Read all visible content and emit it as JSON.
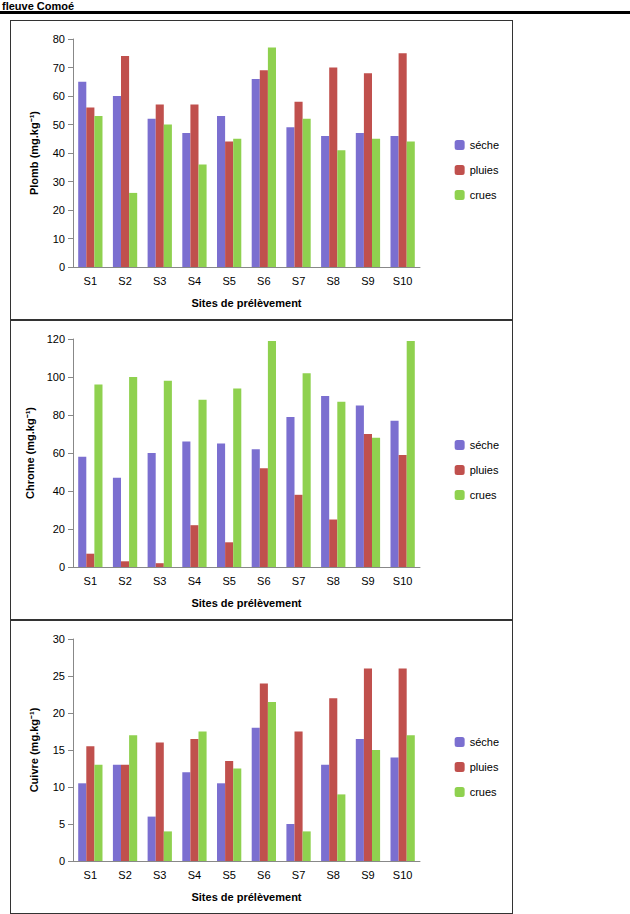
{
  "header": "fleuve Comoé",
  "chart_data": [
    {
      "type": "bar",
      "ylabel": "Plomb (mg.kg⁻¹)",
      "xlabel": "Sites de prélèvement",
      "categories": [
        "S1",
        "S2",
        "S3",
        "S4",
        "S5",
        "S6",
        "S7",
        "S8",
        "S9",
        "S10"
      ],
      "series": [
        {
          "name": "séche",
          "color": "#7b6fd0",
          "values": [
            65,
            60,
            52,
            47,
            53,
            66,
            49,
            46,
            47,
            46
          ]
        },
        {
          "name": "pluies",
          "color": "#c0504d",
          "values": [
            56,
            74,
            57,
            57,
            44,
            69,
            58,
            70,
            68,
            75
          ]
        },
        {
          "name": "crues",
          "color": "#8fd14f",
          "values": [
            53,
            26,
            50,
            36,
            45,
            77,
            52,
            41,
            45,
            44
          ]
        }
      ],
      "ylim": [
        0,
        80
      ],
      "yticks": [
        0,
        10,
        20,
        30,
        40,
        50,
        60,
        70,
        80
      ],
      "grid": false,
      "legend": "right"
    },
    {
      "type": "bar",
      "ylabel": "Chrome (mg.kg⁻¹)",
      "xlabel": "Sites de prélèvement",
      "categories": [
        "S1",
        "S2",
        "S3",
        "S4",
        "S5",
        "S6",
        "S7",
        "S8",
        "S9",
        "S10"
      ],
      "series": [
        {
          "name": "séche",
          "color": "#7b6fd0",
          "values": [
            58,
            47,
            60,
            66,
            65,
            62,
            79,
            90,
            85,
            77
          ]
        },
        {
          "name": "pluies",
          "color": "#c0504d",
          "values": [
            7,
            3,
            2,
            22,
            13,
            52,
            38,
            25,
            70,
            59
          ]
        },
        {
          "name": "crues",
          "color": "#8fd14f",
          "values": [
            96,
            100,
            98,
            88,
            94,
            119,
            102,
            87,
            68,
            119
          ]
        }
      ],
      "ylim": [
        0,
        120
      ],
      "yticks": [
        0,
        20,
        40,
        60,
        80,
        100,
        120
      ],
      "grid": false,
      "legend": "right"
    },
    {
      "type": "bar",
      "ylabel": "Cuivre (mg.kg⁻¹)",
      "xlabel": "Sites de prélèvement",
      "categories": [
        "S1",
        "S2",
        "S3",
        "S4",
        "S5",
        "S6",
        "S7",
        "S8",
        "S9",
        "S10"
      ],
      "series": [
        {
          "name": "séche",
          "color": "#7b6fd0",
          "values": [
            10.5,
            13,
            6,
            12,
            10.5,
            18,
            5,
            13,
            16.5,
            14
          ]
        },
        {
          "name": "pluies",
          "color": "#c0504d",
          "values": [
            15.5,
            13,
            16,
            16.5,
            13.5,
            24,
            17.5,
            22,
            26,
            26
          ]
        },
        {
          "name": "crues",
          "color": "#8fd14f",
          "values": [
            13,
            17,
            4,
            17.5,
            12.5,
            21.5,
            4,
            9,
            15,
            17
          ]
        }
      ],
      "ylim": [
        0,
        30
      ],
      "yticks": [
        0,
        5,
        10,
        15,
        20,
        25,
        30
      ],
      "grid": false,
      "legend": "right"
    }
  ]
}
